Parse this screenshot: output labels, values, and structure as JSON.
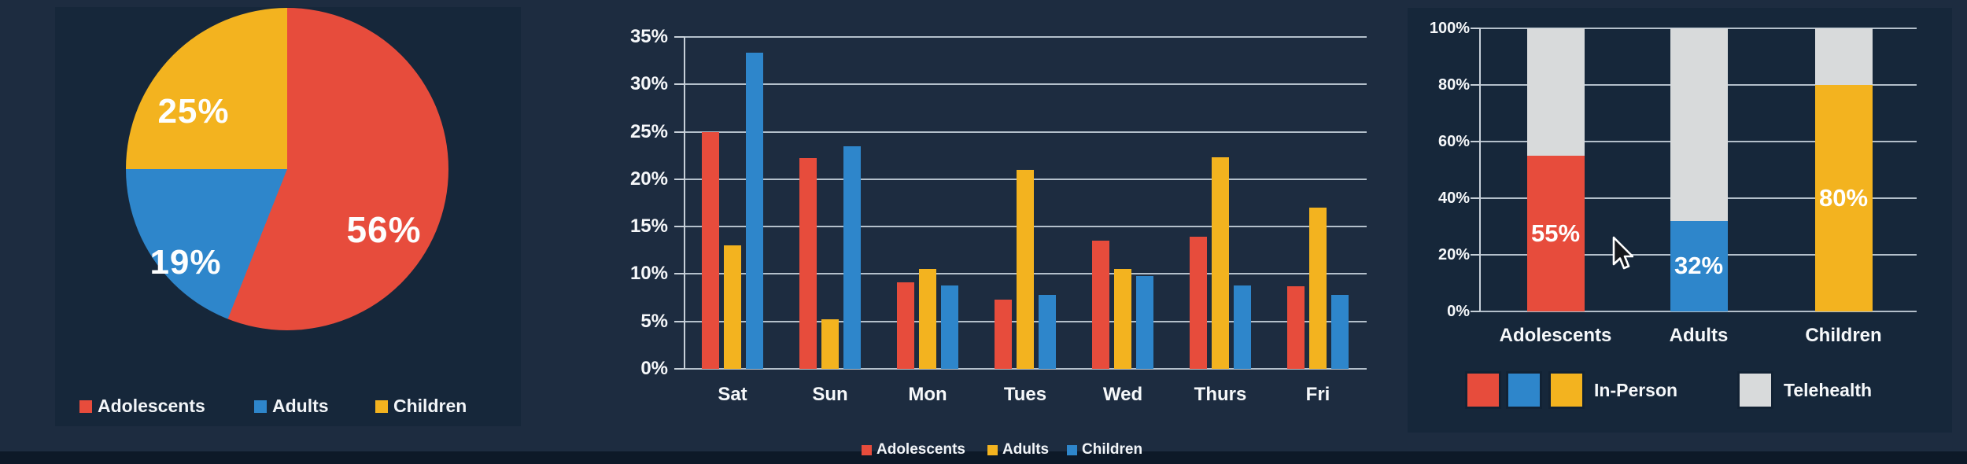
{
  "colors": {
    "adolescents_red": "#E74C3C",
    "adults_blue": "#2E86CB",
    "children_yellow": "#F3B31F",
    "telehealth_gray": "#D8DADB",
    "background": "#1D2C40",
    "panel": "#16273A",
    "bottom_strip": "#0D1928",
    "grid_line": "#C7D0D9",
    "text": "#FFFFFF"
  },
  "cursor": {
    "icon": "arrow-cursor"
  },
  "chart_data": [
    {
      "type": "pie",
      "title": "",
      "legend_position": "bottom",
      "slices": [
        {
          "label": "Adolescents",
          "value": 56,
          "color": "#E74C3C",
          "data_label": "56%"
        },
        {
          "label": "Adults",
          "value": 19,
          "color": "#2E86CB",
          "data_label": "19%"
        },
        {
          "label": "Children",
          "value": 25,
          "color": "#F3B31F",
          "data_label": "25%"
        }
      ]
    },
    {
      "type": "bar",
      "title": "",
      "categories": [
        "Sat",
        "Sun",
        "Mon",
        "Tues",
        "Wed",
        "Thurs",
        "Fri"
      ],
      "series": [
        {
          "name": "Adolescents",
          "color": "#E74C3C",
          "values": [
            25,
            22.2,
            9.1,
            7.3,
            13.5,
            13.9,
            8.7
          ]
        },
        {
          "name": "Adults",
          "color": "#F3B31F",
          "values": [
            13,
            5.2,
            10.5,
            21,
            10.5,
            22.3,
            17
          ]
        },
        {
          "name": "Children",
          "color": "#2E86CB",
          "values": [
            33.3,
            23.5,
            8.8,
            7.8,
            9.8,
            8.8,
            7.8
          ]
        }
      ],
      "ylim": [
        0,
        35
      ],
      "ytick_labels": [
        "35%",
        "30%",
        "25%",
        "20%",
        "15%",
        "10%",
        "5%",
        "0%"
      ],
      "grid": true,
      "legend_position": "bottom"
    },
    {
      "type": "bar",
      "stacked": true,
      "title": "",
      "categories": [
        "Adolescents",
        "Adults",
        "Children"
      ],
      "series": [
        {
          "name": "In-Person",
          "colors": [
            "#E74C3C",
            "#2E86CB",
            "#F3B31F"
          ],
          "values": [
            55,
            32,
            80
          ],
          "data_labels": [
            "55%",
            "32%",
            "80%"
          ]
        },
        {
          "name": "Telehealth",
          "color": "#D8DADB",
          "values": [
            45,
            68,
            20
          ]
        }
      ],
      "ylim": [
        0,
        100
      ],
      "ytick_labels": [
        "100%",
        "80%",
        "60%",
        "40%",
        "20%",
        "0%"
      ],
      "grid": true,
      "legend": {
        "in_person": {
          "label": "In-Person"
        },
        "telehealth": {
          "label": "Telehealth"
        }
      }
    }
  ]
}
